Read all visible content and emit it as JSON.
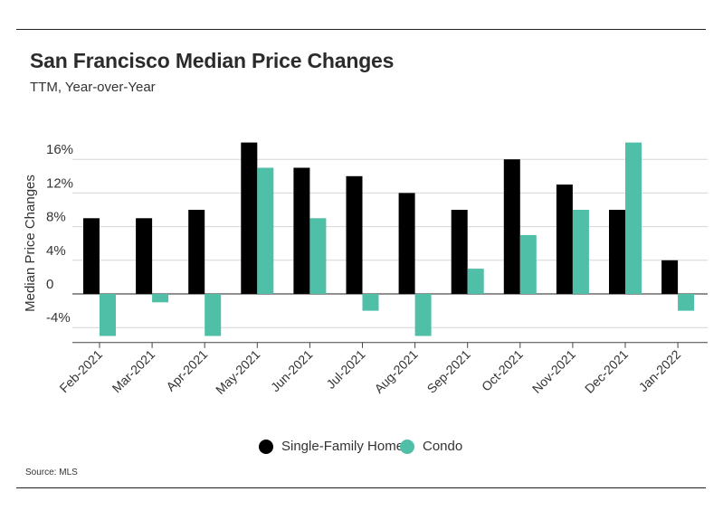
{
  "header": {
    "title": "San Francisco Median Price Changes",
    "subtitle": "TTM, Year-over-Year"
  },
  "source": "Source:  MLS",
  "legend": {
    "items": [
      {
        "label": "Single-Family Home",
        "color": "#000000"
      },
      {
        "label": "Condo",
        "color": "#4fbfa8"
      }
    ]
  },
  "chart_data": {
    "type": "bar",
    "title": "San Francisco Median Price Changes",
    "subtitle": "TTM, Year-over-Year",
    "xlabel": "",
    "ylabel": "Median Price Changes",
    "ylim": [
      -6,
      18
    ],
    "yticks": [
      -4,
      0,
      4,
      8,
      12,
      16
    ],
    "ytick_labels": [
      "-4%",
      "0",
      "4%",
      "8%",
      "12%",
      "16%"
    ],
    "grid": "horizontal",
    "legend_position": "bottom-center",
    "categories": [
      "Feb-2021",
      "Mar-2021",
      "Apr-2021",
      "May-2021",
      "Jun-2021",
      "Jul-2021",
      "Aug-2021",
      "Sep-2021",
      "Oct-2021",
      "Nov-2021",
      "Dec-2021",
      "Jan-2022"
    ],
    "series": [
      {
        "name": "Single-Family Home",
        "color": "#000000",
        "values": [
          9,
          9,
          10,
          18,
          15,
          14,
          12,
          10,
          16,
          13,
          10,
          4
        ]
      },
      {
        "name": "Condo",
        "color": "#4fbfa8",
        "values": [
          -5,
          -1,
          -5,
          15,
          9,
          -2,
          -5,
          3,
          7,
          10,
          18,
          -2
        ]
      }
    ]
  }
}
